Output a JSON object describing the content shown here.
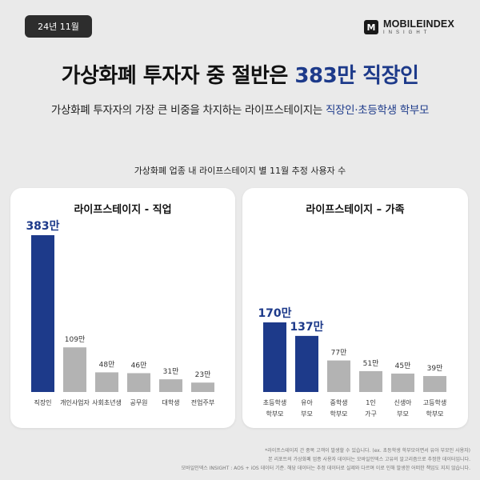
{
  "header": {
    "date": "24년 11월",
    "logo_mark": "M",
    "logo_main": "MOBILEINDEX",
    "logo_sub": "INSIGHT"
  },
  "headline": {
    "prefix": "가상화폐 투자자 중 절반은 ",
    "highlight": "383만 직장인"
  },
  "subhead": {
    "prefix": "가상화폐 투자자의 가장 큰 비중을 차지하는 라이프스테이지는 ",
    "highlight": "직장인·초등학생 학부모"
  },
  "section_title": "가상화폐 업종 내 라이프스테이지 별 11월 추정 사용자 수",
  "colors": {
    "primary": "#1d3a8a",
    "secondary": "#b3b3b3"
  },
  "chart_data": [
    {
      "type": "bar",
      "title": "라이프스테이지 - 직업",
      "unit": "만",
      "categories": [
        "직장인",
        "개인사업자",
        "사회초년생",
        "공무원",
        "대학생",
        "전업주부"
      ],
      "values": [
        383,
        109,
        48,
        46,
        31,
        23
      ],
      "labels": [
        "383만",
        "109만",
        "48만",
        "46만",
        "31만",
        "23만"
      ],
      "highlight_count": 1,
      "ylim": [
        0,
        420
      ]
    },
    {
      "type": "bar",
      "title": "라이프스테이지 – 가족",
      "unit": "만",
      "categories": [
        "초등학생 학부모",
        "유아 부모",
        "중학생 학부모",
        "1인 가구",
        "신생아 부모",
        "고등학생 학부모"
      ],
      "values": [
        170,
        137,
        77,
        51,
        45,
        39
      ],
      "labels": [
        "170만",
        "137만",
        "77만",
        "51만",
        "45만",
        "39만"
      ],
      "highlight_count": 2,
      "ylim": [
        0,
        420
      ]
    }
  ],
  "footnotes": [
    "*라이프스테이지 간 중복 고객이 발생할 수 있습니다. (ex. 초등학생 학부모이면서 유아 부모인 사용자)",
    "본 리포트의 가상화폐 업종 사용자 데이터는 모바일인덱스 고유의 알고리즘으로 추정한 데이터입니다.",
    "모바일인덱스 INSIGHT : AOS + iOS 데이터 기준. 해당 데이터는 추정 데이터로 실제와 다르며 이로 인해 발생한 어떠한 책임도 지지 않습니다."
  ]
}
